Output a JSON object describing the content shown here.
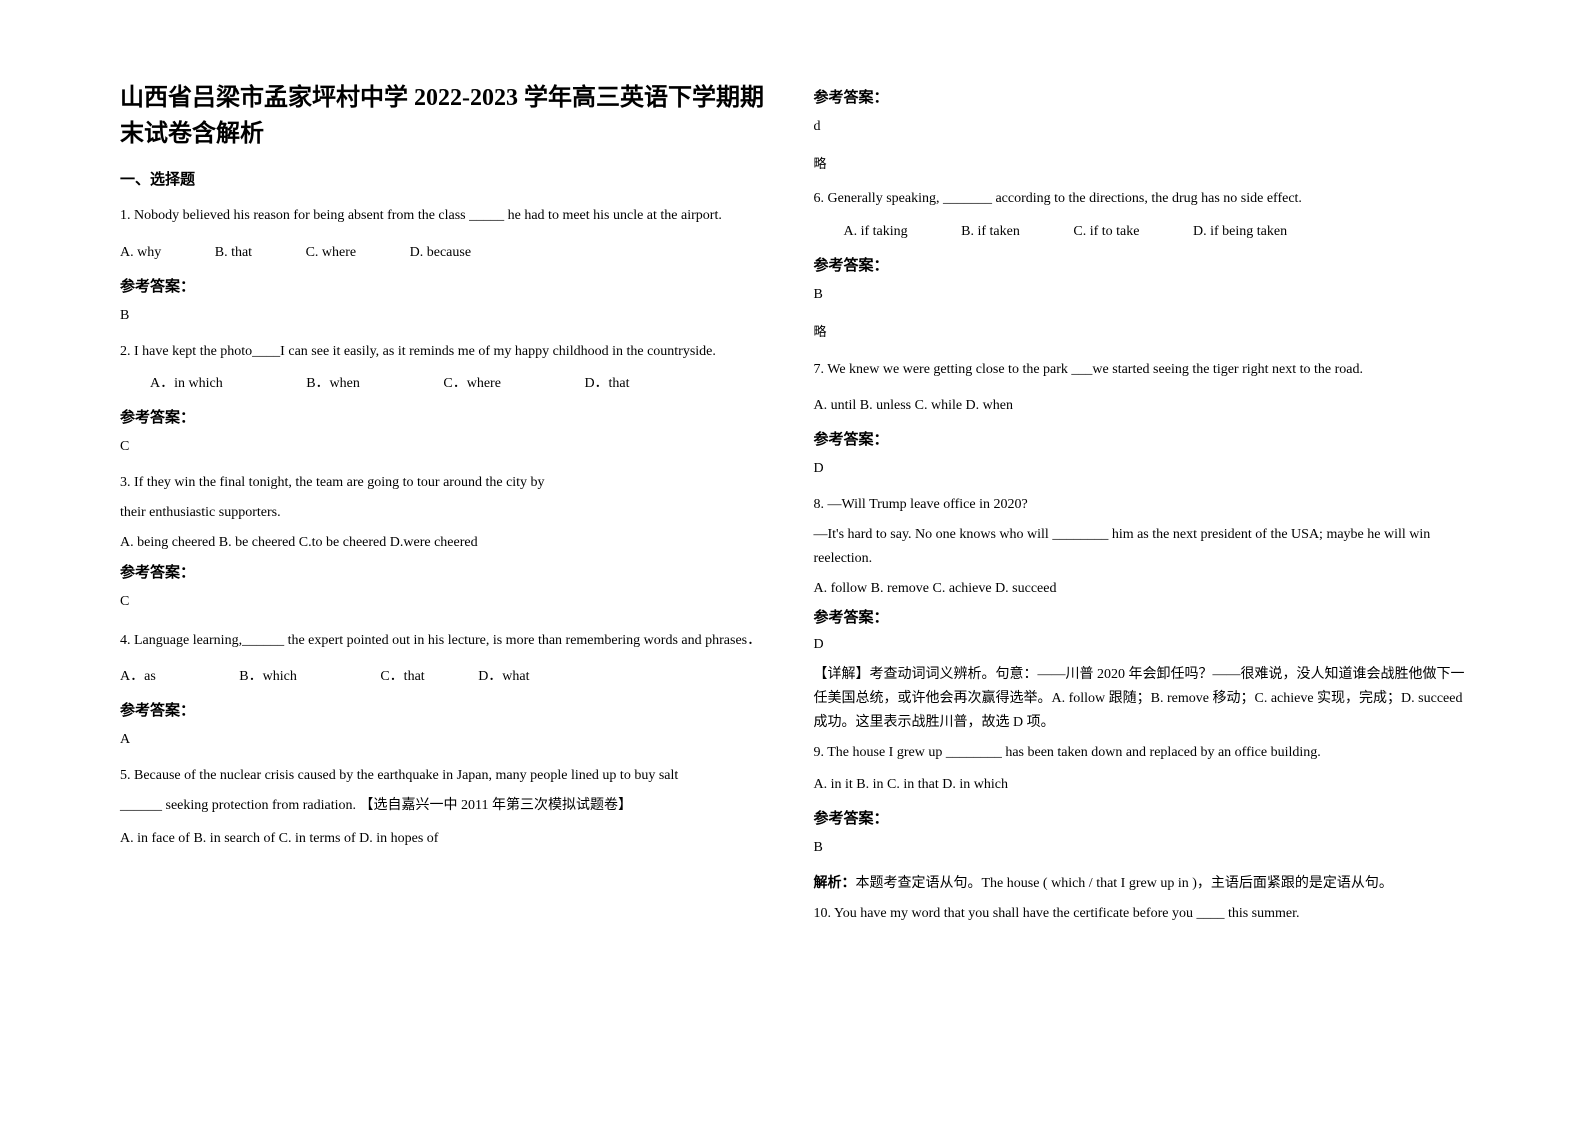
{
  "title": "山西省吕梁市孟家坪村中学 2022-2023 学年高三英语下学期期末试卷含解析",
  "section1_header": "一、选择题",
  "q1": {
    "text": "1. Nobody believed his reason for being absent from the class _____ he had to meet his uncle at the airport.",
    "optA": "A. why",
    "optB": "B. that",
    "optC": "C. where",
    "optD": "D. because",
    "answer_label": "参考答案：",
    "answer": "B"
  },
  "q2": {
    "text": "2. I have kept the photo____I can see it easily, as it reminds me of my happy childhood in the countryside.",
    "optA": "A．in which",
    "optB": "B．when",
    "optC": "C．where",
    "optD": "D．that",
    "answer_label": "参考答案：",
    "answer": "C"
  },
  "q3": {
    "text1": "3. If they win the final tonight, the team are going to tour around the city  by",
    "text2": "their  enthusiastic supporters.",
    "options": "A. being cheered        B. be cheered   C.to be cheered    D.were cheered",
    "answer_label": "参考答案：",
    "answer": "C"
  },
  "q4": {
    "text": "4. Language learning,______ the expert pointed out in his lecture, is more than remembering words and phrases．",
    "optA": "A．as",
    "optB": "B．which",
    "optC": "C．that",
    "optD": "D．what",
    "answer_label": "参考答案：",
    "answer": "A"
  },
  "q5": {
    "text1": "5. Because of the nuclear crisis caused by the earthquake in Japan, many people lined up to buy salt",
    "text2": "______ seeking protection from radiation. 【选自嘉兴一中 2011 年第三次模拟试题卷】",
    "options": " A. in face of    B. in search of    C. in terms of    D. in hopes of",
    "answer_label": "参考答案：",
    "answer": "d"
  },
  "lue1": "略",
  "q6": {
    "text": "6. Generally speaking, _______ according to the directions, the drug has no side effect.",
    "optA": "A. if taking",
    "optB": "B. if taken",
    "optC": "C. if to take",
    "optD": "D. if being taken",
    "answer_label": "参考答案：",
    "answer": "B"
  },
  "lue2": "略",
  "q7": {
    "text": "7. We knew we were getting close to the park ___we started seeing the tiger right next to the road.",
    "options": "A. until    B. unless    C. while    D. when",
    "answer_label": "参考答案：",
    "answer": "D"
  },
  "q8": {
    "text1": "8. —Will Trump leave office in 2020?",
    "text2": "—It's hard to say. No one knows who will ________ him as the next president of the USA; maybe he will win reelection.",
    "options": "A. follow        B. remove       C. achieve       D. succeed",
    "answer_label": "参考答案：",
    "answer": "D",
    "explanation": "【详解】考查动词词义辨析。句意：——川普 2020 年会卸任吗？——很难说，没人知道谁会战胜他做下一任美国总统，或许他会再次赢得选举。A. follow 跟随；B. remove 移动；C. achieve 实现，完成；D. succeed 成功。这里表示战胜川普，故选 D 项。"
  },
  "q9": {
    "text": "9. The house I grew up ________ has been taken down and replaced by an office building.",
    "options": "A. in it    B. in    C. in that     D. in which",
    "answer_label": "参考答案：",
    "answer": " B",
    "explanation_label": "解析：",
    "explanation": "本题考查定语从句。The house ( which / that I grew up in )，主语后面紧跟的是定语从句。"
  },
  "q10": {
    "text": "10. You have my word that you shall have the certificate before you ____ this summer."
  }
}
